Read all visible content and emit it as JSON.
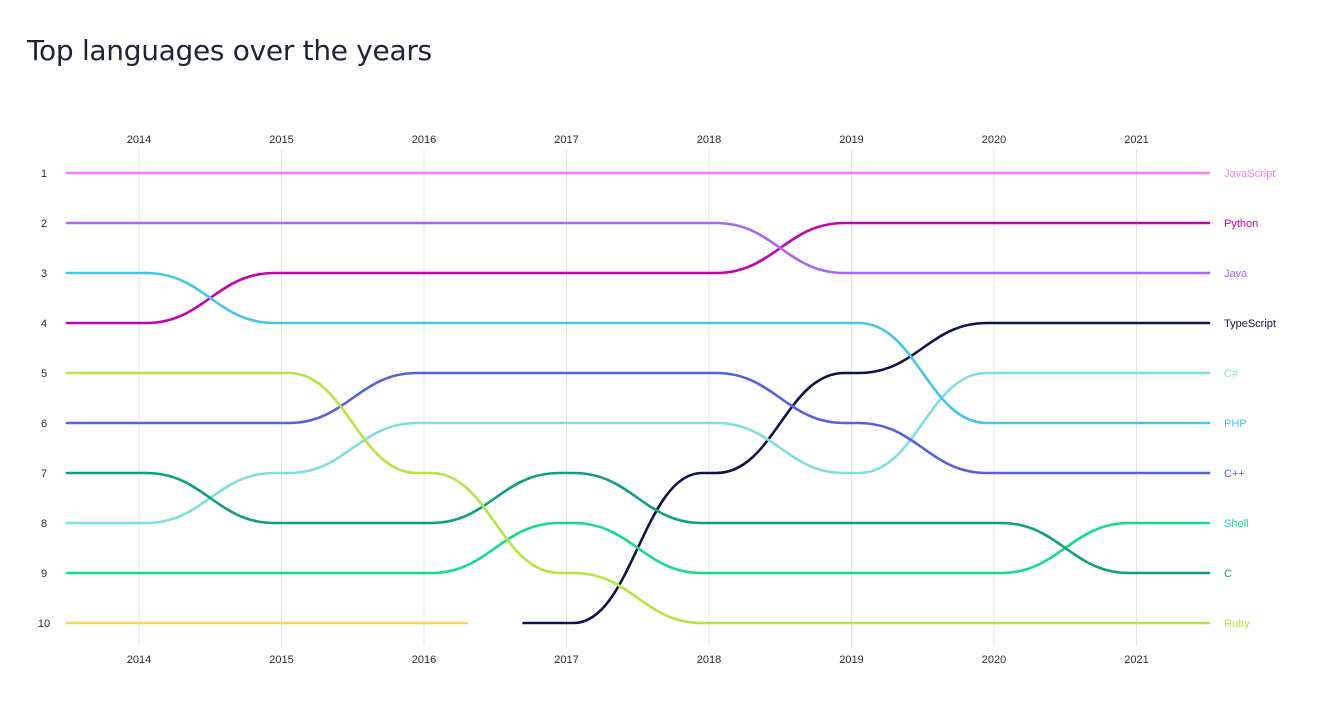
{
  "chart_data": {
    "type": "bump",
    "title": "Top languages over the years",
    "xlabel": "",
    "ylabel": "",
    "x": [
      "2014",
      "2015",
      "2016",
      "2017",
      "2018",
      "2019",
      "2020",
      "2021"
    ],
    "y_ticks": [
      "1",
      "2",
      "3",
      "4",
      "5",
      "6",
      "7",
      "8",
      "9",
      "10"
    ],
    "ylim": [
      1,
      10
    ],
    "y_inverted": true,
    "grid": "vertical",
    "legend": "end-labels-right",
    "series": [
      {
        "name": "JavaScript",
        "color": "#f67ef6",
        "values": [
          1,
          1,
          1,
          1,
          1,
          1,
          1,
          1
        ]
      },
      {
        "name": "Python",
        "color": "#c303ab",
        "values": [
          4,
          3,
          3,
          3,
          3,
          2,
          2,
          2
        ]
      },
      {
        "name": "Java",
        "color": "#aa66f5",
        "values": [
          2,
          2,
          2,
          2,
          2,
          3,
          3,
          3
        ]
      },
      {
        "name": "TypeScript",
        "color": "#10124b",
        "values": [
          null,
          null,
          null,
          10,
          7,
          5,
          4,
          4
        ]
      },
      {
        "name": "C#",
        "color": "#7fdfdc",
        "values": [
          8,
          7,
          6,
          6,
          6,
          7,
          5,
          5
        ]
      },
      {
        "name": "PHP",
        "color": "#45c5e7",
        "values": [
          3,
          4,
          4,
          4,
          4,
          4,
          6,
          6
        ]
      },
      {
        "name": "C++",
        "color": "#5561dd",
        "values": [
          6,
          6,
          5,
          5,
          5,
          6,
          7,
          7
        ]
      },
      {
        "name": "Shell",
        "color": "#14dc8c",
        "values": [
          9,
          9,
          9,
          8,
          9,
          9,
          9,
          8
        ]
      },
      {
        "name": "C",
        "color": "#0e9e80",
        "values": [
          7,
          8,
          8,
          7,
          8,
          8,
          8,
          9
        ]
      },
      {
        "name": "Ruby",
        "color": "#b5e540",
        "values": [
          5,
          5,
          7,
          9,
          10,
          10,
          10,
          10
        ]
      },
      {
        "name": "",
        "color": "#f7d851",
        "values": [
          10,
          10,
          10,
          null,
          null,
          null,
          null,
          null
        ]
      }
    ]
  }
}
